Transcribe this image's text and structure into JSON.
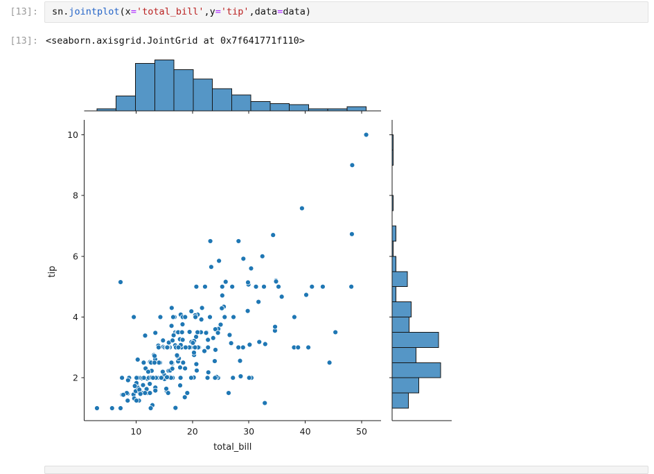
{
  "notebook": {
    "cell": {
      "input_prompt": "[13]:",
      "code_tokens": [
        {
          "text": "sn.",
          "kind": "plain"
        },
        {
          "text": "jointplot",
          "kind": "function"
        },
        {
          "text": "(x",
          "kind": "plain"
        },
        {
          "text": "=",
          "kind": "operator"
        },
        {
          "text": "'total_bill'",
          "kind": "string"
        },
        {
          "text": ",y",
          "kind": "plain"
        },
        {
          "text": "=",
          "kind": "operator"
        },
        {
          "text": "'tip'",
          "kind": "string"
        },
        {
          "text": ",data",
          "kind": "plain"
        },
        {
          "text": "=",
          "kind": "operator"
        },
        {
          "text": "data)",
          "kind": "plain"
        }
      ],
      "output_prompt": "[13]:",
      "output_text": "<seaborn.axisgrid.JointGrid at 0x7f641771f110>"
    }
  },
  "chart_data": {
    "type": "scatter",
    "title": "",
    "xlabel": "total_bill",
    "ylabel": "tip",
    "xlim": [
      0.8,
      53.44
    ],
    "ylim": [
      0.59,
      10.49
    ],
    "xticks": [
      10,
      20,
      30,
      40,
      50
    ],
    "yticks": [
      2,
      4,
      6,
      8,
      10
    ],
    "grid": false,
    "legend": "none",
    "colors": {
      "point": "#1f77b4",
      "point_edge": "#ffffff",
      "bar_fill": "#5596c6",
      "bar_edge": "#141414",
      "axis": "#1a1a1a"
    },
    "marginal_x_hist": {
      "bin_start": 3.07,
      "bin_width": 3.41,
      "counts": [
        2,
        14,
        45,
        48,
        39,
        30,
        21,
        15,
        9,
        7,
        6,
        2,
        2,
        4
      ]
    },
    "marginal_y_hist": {
      "bin_start": 1.0,
      "bin_width": 0.5,
      "counts": [
        17,
        28,
        51,
        25,
        49,
        18,
        20,
        4,
        16,
        4,
        1,
        4,
        0,
        1,
        0,
        0,
        1,
        1
      ]
    },
    "points": [
      [
        16.99,
        1.01
      ],
      [
        10.34,
        1.66
      ],
      [
        21.01,
        3.5
      ],
      [
        23.68,
        3.31
      ],
      [
        24.59,
        3.61
      ],
      [
        25.29,
        4.71
      ],
      [
        8.77,
        2
      ],
      [
        26.88,
        3.12
      ],
      [
        15.04,
        1.96
      ],
      [
        14.78,
        3.23
      ],
      [
        10.27,
        1.71
      ],
      [
        35.26,
        5
      ],
      [
        15.42,
        1.57
      ],
      [
        18.43,
        3
      ],
      [
        14.83,
        3.02
      ],
      [
        21.58,
        3.92
      ],
      [
        10.33,
        1.67
      ],
      [
        16.29,
        3.71
      ],
      [
        16.97,
        3.5
      ],
      [
        20.65,
        3.35
      ],
      [
        17.92,
        4.08
      ],
      [
        20.29,
        2.75
      ],
      [
        15.77,
        2.23
      ],
      [
        39.42,
        7.58
      ],
      [
        19.82,
        3.18
      ],
      [
        17.81,
        2.34
      ],
      [
        13.37,
        2
      ],
      [
        12.69,
        2
      ],
      [
        21.7,
        4.3
      ],
      [
        19.65,
        3
      ],
      [
        9.55,
        1.45
      ],
      [
        18.35,
        2.5
      ],
      [
        15.06,
        3
      ],
      [
        20.69,
        2.45
      ],
      [
        17.78,
        3.27
      ],
      [
        24.06,
        3.6
      ],
      [
        16.31,
        2
      ],
      [
        16.93,
        3.07
      ],
      [
        18.69,
        2.31
      ],
      [
        31.27,
        5
      ],
      [
        16.04,
        2.24
      ],
      [
        17.46,
        2.54
      ],
      [
        13.94,
        3.06
      ],
      [
        9.68,
        1.32
      ],
      [
        30.4,
        5.6
      ],
      [
        18.29,
        3
      ],
      [
        22.23,
        5
      ],
      [
        32.4,
        6
      ],
      [
        28.55,
        2.05
      ],
      [
        18.04,
        3
      ],
      [
        12.54,
        2.5
      ],
      [
        10.29,
        2.6
      ],
      [
        34.81,
        5.2
      ],
      [
        9.94,
        1.56
      ],
      [
        25.56,
        4.34
      ],
      [
        19.49,
        3.51
      ],
      [
        38.01,
        3
      ],
      [
        26.41,
        1.5
      ],
      [
        11.24,
        1.76
      ],
      [
        48.27,
        6.73
      ],
      [
        20.29,
        3.21
      ],
      [
        13.81,
        2
      ],
      [
        11.02,
        1.98
      ],
      [
        18.29,
        3.76
      ],
      [
        17.59,
        2.64
      ],
      [
        20.08,
        3.15
      ],
      [
        16.45,
        2.47
      ],
      [
        3.07,
        1
      ],
      [
        20.23,
        2.01
      ],
      [
        15.01,
        2.09
      ],
      [
        12.02,
        1.97
      ],
      [
        17.07,
        3
      ],
      [
        26.86,
        3.14
      ],
      [
        25.28,
        5
      ],
      [
        14.73,
        2.2
      ],
      [
        10.51,
        1.25
      ],
      [
        17.92,
        3.08
      ],
      [
        27.2,
        4
      ],
      [
        22.76,
        3
      ],
      [
        17.29,
        2.71
      ],
      [
        19.44,
        3
      ],
      [
        16.66,
        3.4
      ],
      [
        10.07,
        1.83
      ],
      [
        32.68,
        5
      ],
      [
        15.98,
        2.03
      ],
      [
        34.83,
        5.17
      ],
      [
        13.03,
        2
      ],
      [
        18.28,
        4
      ],
      [
        24.71,
        5.85
      ],
      [
        21.16,
        3
      ],
      [
        28.97,
        3
      ],
      [
        22.49,
        3.5
      ],
      [
        5.75,
        1
      ],
      [
        16.32,
        4.3
      ],
      [
        22.75,
        3.25
      ],
      [
        40.17,
        4.73
      ],
      [
        27.28,
        4
      ],
      [
        12.03,
        1.5
      ],
      [
        21.01,
        3
      ],
      [
        12.46,
        1.5
      ],
      [
        11.35,
        2.5
      ],
      [
        15.38,
        3
      ],
      [
        44.3,
        2.5
      ],
      [
        22.42,
        3.48
      ],
      [
        20.92,
        4.08
      ],
      [
        15.36,
        1.64
      ],
      [
        20.49,
        4.06
      ],
      [
        25.21,
        4.29
      ],
      [
        18.24,
        3.76
      ],
      [
        14.31,
        4
      ],
      [
        14.0,
        3
      ],
      [
        7.25,
        1
      ],
      [
        38.07,
        4
      ],
      [
        23.95,
        2.55
      ],
      [
        25.71,
        4
      ],
      [
        17.31,
        3.5
      ],
      [
        29.93,
        5.07
      ],
      [
        10.65,
        1.5
      ],
      [
        12.43,
        1.8
      ],
      [
        24.08,
        2.92
      ],
      [
        11.69,
        2.31
      ],
      [
        13.42,
        1.68
      ],
      [
        14.26,
        2.5
      ],
      [
        15.95,
        2
      ],
      [
        12.48,
        2.52
      ],
      [
        29.8,
        4.2
      ],
      [
        8.52,
        1.48
      ],
      [
        14.52,
        2
      ],
      [
        11.38,
        2
      ],
      [
        22.82,
        2.18
      ],
      [
        19.08,
        1.5
      ],
      [
        20.27,
        2.83
      ],
      [
        11.17,
        1.5
      ],
      [
        12.26,
        2
      ],
      [
        18.26,
        3.25
      ],
      [
        8.51,
        1.25
      ],
      [
        10.33,
        2
      ],
      [
        14.15,
        2
      ],
      [
        16.0,
        2
      ],
      [
        13.16,
        2.75
      ],
      [
        17.47,
        3.5
      ],
      [
        34.3,
        6.7
      ],
      [
        41.19,
        5
      ],
      [
        27.05,
        5
      ],
      [
        16.43,
        2.3
      ],
      [
        8.35,
        1.5
      ],
      [
        18.64,
        1.36
      ],
      [
        11.87,
        1.63
      ],
      [
        9.78,
        1.73
      ],
      [
        7.51,
        2
      ],
      [
        14.07,
        2.5
      ],
      [
        13.13,
        2
      ],
      [
        17.26,
        2.74
      ],
      [
        24.55,
        2
      ],
      [
        19.77,
        2
      ],
      [
        29.85,
        5.14
      ],
      [
        48.17,
        5
      ],
      [
        25.0,
        3.75
      ],
      [
        13.39,
        2.61
      ],
      [
        16.49,
        2
      ],
      [
        21.5,
        3.5
      ],
      [
        12.66,
        2.5
      ],
      [
        16.21,
        2
      ],
      [
        13.81,
        2
      ],
      [
        17.51,
        3
      ],
      [
        24.52,
        3.48
      ],
      [
        20.76,
        2.24
      ],
      [
        31.71,
        4.5
      ],
      [
        10.59,
        1.61
      ],
      [
        10.63,
        2
      ],
      [
        50.81,
        10
      ],
      [
        15.81,
        3.16
      ],
      [
        7.25,
        5.15
      ],
      [
        31.85,
        3.18
      ],
      [
        16.82,
        4
      ],
      [
        32.9,
        3.11
      ],
      [
        17.89,
        2
      ],
      [
        14.48,
        2
      ],
      [
        9.6,
        4
      ],
      [
        34.63,
        3.55
      ],
      [
        34.65,
        3.68
      ],
      [
        23.33,
        5.65
      ],
      [
        45.35,
        3.5
      ],
      [
        23.17,
        6.5
      ],
      [
        40.55,
        3
      ],
      [
        20.69,
        5
      ],
      [
        20.9,
        3.5
      ],
      [
        30.46,
        2
      ],
      [
        18.15,
        3.5
      ],
      [
        23.1,
        4
      ],
      [
        15.69,
        1.5
      ],
      [
        19.81,
        4.19
      ],
      [
        28.44,
        2.56
      ],
      [
        15.48,
        2.02
      ],
      [
        16.58,
        4
      ],
      [
        7.56,
        1.44
      ],
      [
        10.34,
        2
      ],
      [
        43.11,
        5
      ],
      [
        13.0,
        2
      ],
      [
        13.51,
        2
      ],
      [
        18.71,
        4
      ],
      [
        12.74,
        2.01
      ],
      [
        13.0,
        2
      ],
      [
        16.4,
        2.5
      ],
      [
        20.53,
        4
      ],
      [
        16.47,
        3.23
      ],
      [
        26.59,
        3.41
      ],
      [
        38.73,
        3
      ],
      [
        24.27,
        2.03
      ],
      [
        12.76,
        2.23
      ],
      [
        30.06,
        2
      ],
      [
        25.89,
        5.16
      ],
      [
        48.33,
        9
      ],
      [
        13.27,
        2.5
      ],
      [
        28.17,
        6.5
      ],
      [
        12.9,
        1.1
      ],
      [
        28.15,
        3
      ],
      [
        11.59,
        1.5
      ],
      [
        7.74,
        1.44
      ],
      [
        30.14,
        3.09
      ],
      [
        12.16,
        2.2
      ],
      [
        13.42,
        3.48
      ],
      [
        8.58,
        1.92
      ],
      [
        15.98,
        3
      ],
      [
        13.42,
        1.58
      ],
      [
        16.27,
        2.5
      ],
      [
        10.09,
        2
      ],
      [
        20.45,
        3
      ],
      [
        13.28,
        2.72
      ],
      [
        22.12,
        2.88
      ],
      [
        24.01,
        2
      ],
      [
        15.69,
        3
      ],
      [
        11.61,
        3.39
      ],
      [
        10.77,
        1.47
      ],
      [
        15.53,
        3
      ],
      [
        10.07,
        1.25
      ],
      [
        12.6,
        1
      ],
      [
        32.83,
        1.17
      ],
      [
        35.83,
        4.67
      ],
      [
        29.03,
        5.92
      ],
      [
        27.18,
        2
      ],
      [
        22.67,
        2
      ],
      [
        17.82,
        1.75
      ],
      [
        18.78,
        3
      ]
    ]
  }
}
